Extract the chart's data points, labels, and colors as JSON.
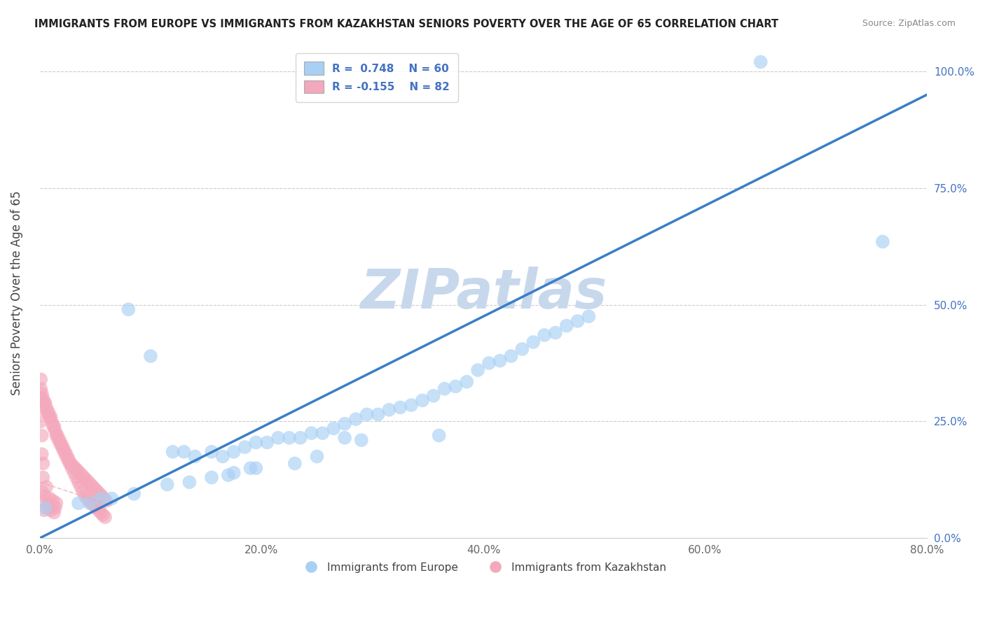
{
  "title": "IMMIGRANTS FROM EUROPE VS IMMIGRANTS FROM KAZAKHSTAN SENIORS POVERTY OVER THE AGE OF 65 CORRELATION CHART",
  "source": "Source: ZipAtlas.com",
  "ylabel": "Seniors Poverty Over the Age of 65",
  "xlim": [
    0,
    0.8
  ],
  "ylim": [
    0,
    1.05
  ],
  "xticks": [
    0.0,
    0.2,
    0.4,
    0.6,
    0.8
  ],
  "xtick_labels": [
    "0.0%",
    "20.0%",
    "40.0%",
    "60.0%",
    "80.0%"
  ],
  "yticks": [
    0.0,
    0.25,
    0.5,
    0.75,
    1.0
  ],
  "ytick_labels": [
    "0.0%",
    "25.0%",
    "50.0%",
    "75.0%",
    "100.0%"
  ],
  "blue_R": 0.748,
  "blue_N": 60,
  "pink_R": -0.155,
  "pink_N": 82,
  "blue_color": "#A8D0F5",
  "pink_color": "#F4A8BC",
  "blue_line_color": "#3A7EC6",
  "pink_line_color": "#E8A8BC",
  "watermark": "ZIPatlas",
  "watermark_color": "#C8D8EC",
  "blue_line_x0": 0.0,
  "blue_line_y0": 0.0,
  "blue_line_x1": 0.8,
  "blue_line_y1": 0.95,
  "pink_line_x0": 0.0,
  "pink_line_y0": 0.12,
  "pink_line_x1": 0.065,
  "pink_line_y1": 0.07,
  "blue_scatter_x": [
    0.65,
    0.005,
    0.08,
    0.1,
    0.12,
    0.13,
    0.14,
    0.155,
    0.165,
    0.175,
    0.185,
    0.195,
    0.205,
    0.215,
    0.225,
    0.235,
    0.245,
    0.255,
    0.265,
    0.275,
    0.285,
    0.295,
    0.305,
    0.315,
    0.325,
    0.335,
    0.345,
    0.355,
    0.365,
    0.375,
    0.385,
    0.395,
    0.405,
    0.415,
    0.425,
    0.435,
    0.445,
    0.455,
    0.465,
    0.475,
    0.485,
    0.495,
    0.36,
    0.275,
    0.29,
    0.23,
    0.25,
    0.17,
    0.19,
    0.155,
    0.175,
    0.195,
    0.115,
    0.135,
    0.085,
    0.065,
    0.055,
    0.045,
    0.035,
    0.76
  ],
  "blue_scatter_y": [
    1.02,
    0.065,
    0.49,
    0.39,
    0.185,
    0.185,
    0.175,
    0.185,
    0.175,
    0.185,
    0.195,
    0.205,
    0.205,
    0.215,
    0.215,
    0.215,
    0.225,
    0.225,
    0.235,
    0.245,
    0.255,
    0.265,
    0.265,
    0.275,
    0.28,
    0.285,
    0.295,
    0.305,
    0.32,
    0.325,
    0.335,
    0.36,
    0.375,
    0.38,
    0.39,
    0.405,
    0.42,
    0.435,
    0.44,
    0.455,
    0.465,
    0.475,
    0.22,
    0.215,
    0.21,
    0.16,
    0.175,
    0.135,
    0.15,
    0.13,
    0.14,
    0.15,
    0.115,
    0.12,
    0.095,
    0.085,
    0.085,
    0.075,
    0.075,
    0.635
  ],
  "pink_scatter_x": [
    0.004,
    0.006,
    0.008,
    0.01,
    0.012,
    0.014,
    0.016,
    0.018,
    0.02,
    0.022,
    0.024,
    0.026,
    0.028,
    0.03,
    0.032,
    0.034,
    0.036,
    0.038,
    0.04,
    0.042,
    0.044,
    0.046,
    0.048,
    0.05,
    0.052,
    0.054,
    0.056,
    0.058,
    0.06,
    0.002,
    0.003,
    0.005,
    0.007,
    0.009,
    0.011,
    0.013,
    0.015,
    0.017,
    0.019,
    0.021,
    0.023,
    0.025,
    0.027,
    0.029,
    0.031,
    0.033,
    0.035,
    0.037,
    0.039,
    0.041,
    0.043,
    0.045,
    0.047,
    0.049,
    0.051,
    0.053,
    0.055,
    0.057,
    0.059,
    0.001,
    0.001,
    0.001,
    0.002,
    0.002,
    0.003,
    0.003,
    0.004,
    0.005,
    0.006,
    0.007,
    0.008,
    0.009,
    0.01,
    0.011,
    0.012,
    0.013,
    0.014,
    0.015,
    0.001,
    0.001,
    0.002,
    0.002
  ],
  "pink_scatter_y": [
    0.29,
    0.28,
    0.27,
    0.26,
    0.24,
    0.23,
    0.22,
    0.21,
    0.2,
    0.19,
    0.18,
    0.17,
    0.16,
    0.155,
    0.15,
    0.145,
    0.14,
    0.135,
    0.13,
    0.125,
    0.12,
    0.115,
    0.11,
    0.105,
    0.1,
    0.095,
    0.09,
    0.085,
    0.08,
    0.31,
    0.3,
    0.29,
    0.27,
    0.26,
    0.25,
    0.24,
    0.22,
    0.21,
    0.2,
    0.19,
    0.18,
    0.17,
    0.16,
    0.15,
    0.14,
    0.13,
    0.12,
    0.11,
    0.1,
    0.09,
    0.085,
    0.08,
    0.075,
    0.07,
    0.065,
    0.06,
    0.055,
    0.05,
    0.045,
    0.34,
    0.32,
    0.08,
    0.1,
    0.28,
    0.13,
    0.16,
    0.06,
    0.09,
    0.11,
    0.065,
    0.075,
    0.085,
    0.06,
    0.07,
    0.08,
    0.055,
    0.065,
    0.075,
    0.3,
    0.25,
    0.18,
    0.22
  ]
}
